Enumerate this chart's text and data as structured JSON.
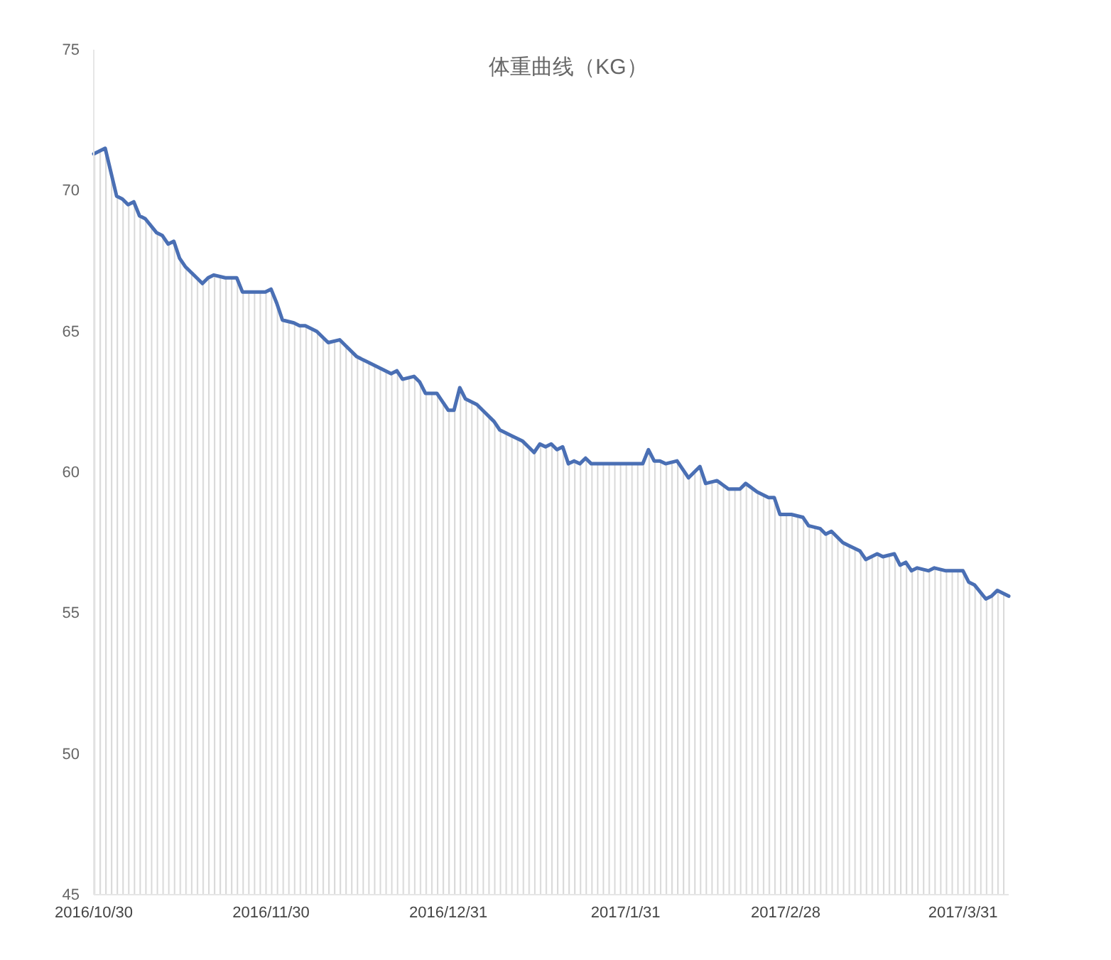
{
  "chart_data": {
    "type": "area",
    "title": "体重曲线（KG）",
    "x": [
      "2016-10-30",
      "2016-11-01",
      "2016-11-03",
      "2016-11-04",
      "2016-11-05",
      "2016-11-06",
      "2016-11-07",
      "2016-11-08",
      "2016-11-10",
      "2016-11-11",
      "2016-11-12",
      "2016-11-13",
      "2016-11-14",
      "2016-11-15",
      "2016-11-17",
      "2016-11-18",
      "2016-11-19",
      "2016-11-20",
      "2016-11-22",
      "2016-11-24",
      "2016-11-25",
      "2016-11-27",
      "2016-11-29",
      "2016-11-30",
      "2016-12-01",
      "2016-12-02",
      "2016-12-04",
      "2016-12-05",
      "2016-12-06",
      "2016-12-08",
      "2016-12-10",
      "2016-12-12",
      "2016-12-13",
      "2016-12-15",
      "2016-12-17",
      "2016-12-19",
      "2016-12-21",
      "2016-12-22",
      "2016-12-23",
      "2016-12-25",
      "2016-12-26",
      "2016-12-27",
      "2016-12-29",
      "2016-12-30",
      "2016-12-31",
      "2017-01-01",
      "2017-01-02",
      "2017-01-03",
      "2017-01-05",
      "2017-01-06",
      "2017-01-08",
      "2017-01-09",
      "2017-01-11",
      "2017-01-13",
      "2017-01-14",
      "2017-01-15",
      "2017-01-16",
      "2017-01-17",
      "2017-01-18",
      "2017-01-19",
      "2017-01-20",
      "2017-01-21",
      "2017-01-22",
      "2017-01-23",
      "2017-01-24",
      "2017-01-25",
      "2017-02-03",
      "2017-02-04",
      "2017-02-05",
      "2017-02-06",
      "2017-02-07",
      "2017-02-09",
      "2017-02-11",
      "2017-02-13",
      "2017-02-14",
      "2017-02-16",
      "2017-02-18",
      "2017-02-20",
      "2017-02-21",
      "2017-02-23",
      "2017-02-25",
      "2017-02-26",
      "2017-02-27",
      "2017-03-01",
      "2017-03-03",
      "2017-03-04",
      "2017-03-06",
      "2017-03-07",
      "2017-03-08",
      "2017-03-10",
      "2017-03-11",
      "2017-03-13",
      "2017-03-14",
      "2017-03-16",
      "2017-03-17",
      "2017-03-19",
      "2017-03-20",
      "2017-03-21",
      "2017-03-22",
      "2017-03-23",
      "2017-03-25",
      "2017-03-26",
      "2017-03-28",
      "2017-03-31",
      "2017-04-01",
      "2017-04-02",
      "2017-04-04",
      "2017-04-05",
      "2017-04-06",
      "2017-04-08"
    ],
    "series": [
      {
        "color": "#4a6fb4",
        "values": [
          71.3,
          71.5,
          69.8,
          69.7,
          69.5,
          69.6,
          69.1,
          69.0,
          68.5,
          68.4,
          68.1,
          68.2,
          67.6,
          67.3,
          66.9,
          66.7,
          66.9,
          67.0,
          66.9,
          66.9,
          66.4,
          66.4,
          66.4,
          66.5,
          66.0,
          65.4,
          65.3,
          65.2,
          65.2,
          65.0,
          64.6,
          64.7,
          64.5,
          64.1,
          63.9,
          63.7,
          63.5,
          63.6,
          63.3,
          63.4,
          63.2,
          62.8,
          62.8,
          62.5,
          62.2,
          62.2,
          63.0,
          62.6,
          62.4,
          62.2,
          61.8,
          61.5,
          61.3,
          61.1,
          60.9,
          60.7,
          61.0,
          60.9,
          61.0,
          60.8,
          60.9,
          60.3,
          60.4,
          60.3,
          60.5,
          60.3,
          60.3,
          60.8,
          60.4,
          60.4,
          60.3,
          60.4,
          59.8,
          60.2,
          59.6,
          59.7,
          59.4,
          59.4,
          59.6,
          59.3,
          59.1,
          59.1,
          58.5,
          58.5,
          58.4,
          58.1,
          58.0,
          57.8,
          57.9,
          57.5,
          57.4,
          57.2,
          56.9,
          57.1,
          57.0,
          57.1,
          56.7,
          56.8,
          56.5,
          56.6,
          56.5,
          56.6,
          56.5,
          56.5,
          56.1,
          56.0,
          55.5,
          55.6,
          55.8,
          55.6
        ]
      }
    ],
    "xlim": [
      "2016-10-30",
      "2017-04-08"
    ],
    "xticks": [
      {
        "value": "2016-10-30",
        "label": "2016/10/30"
      },
      {
        "value": "2016-11-30",
        "label": "2016/11/30"
      },
      {
        "value": "2016-12-31",
        "label": "2016/12/31"
      },
      {
        "value": "2017-01-31",
        "label": "2017/1/31"
      },
      {
        "value": "2017-02-28",
        "label": "2017/2/28"
      },
      {
        "value": "2017-03-31",
        "label": "2017/3/31"
      }
    ],
    "ylim": [
      45,
      75
    ],
    "yticks": [
      45,
      50,
      55,
      60,
      65,
      70,
      75
    ]
  }
}
